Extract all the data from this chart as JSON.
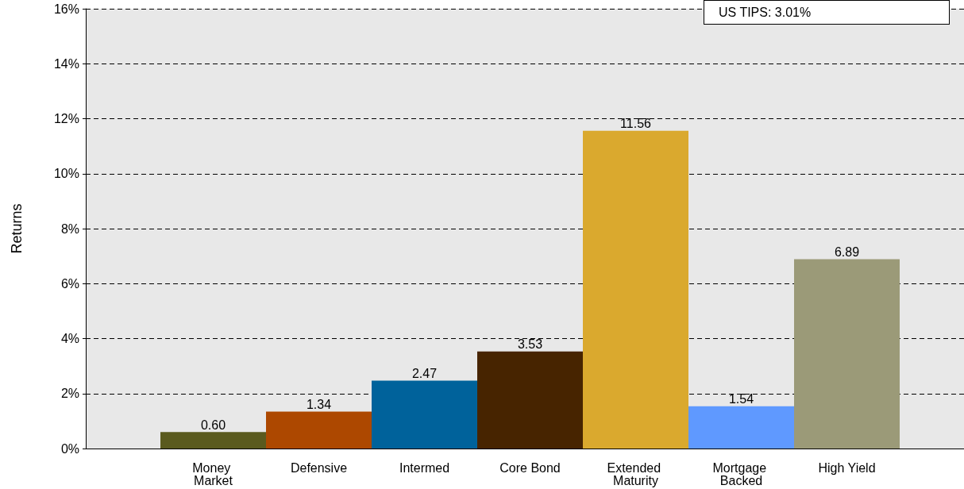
{
  "chart_data": {
    "type": "bar",
    "ylabel": "Returns",
    "categories": [
      "Money Market",
      "Defensive",
      "Intermed",
      "Core Bond",
      "Extended Maturity",
      "Mortgage Backed",
      "High Yield"
    ],
    "values": [
      0.6,
      1.34,
      2.47,
      3.53,
      11.56,
      1.54,
      6.89
    ],
    "colors": [
      "#5a5a1e",
      "#ad4800",
      "#00629b",
      "#472400",
      "#daa92e",
      "#5f99ff",
      "#9b9a78"
    ],
    "ylim": [
      0,
      16
    ],
    "yticks": [
      {
        "value": 0,
        "label": "0%"
      },
      {
        "value": 2,
        "label": "2%"
      },
      {
        "value": 4,
        "label": "4%"
      },
      {
        "value": 6,
        "label": "6%"
      },
      {
        "value": 8,
        "label": "8%"
      },
      {
        "value": 10,
        "label": "10%"
      },
      {
        "value": 12,
        "label": "12%"
      },
      {
        "value": 14,
        "label": "14%"
      },
      {
        "value": 16,
        "label": "16%"
      }
    ],
    "value_labels": [
      "0.60",
      "1.34",
      "2.47",
      "3.53",
      "11.56",
      "1.54",
      "6.89"
    ],
    "grid": "y",
    "annotations": [
      "US TIPS: 3.01%"
    ]
  }
}
